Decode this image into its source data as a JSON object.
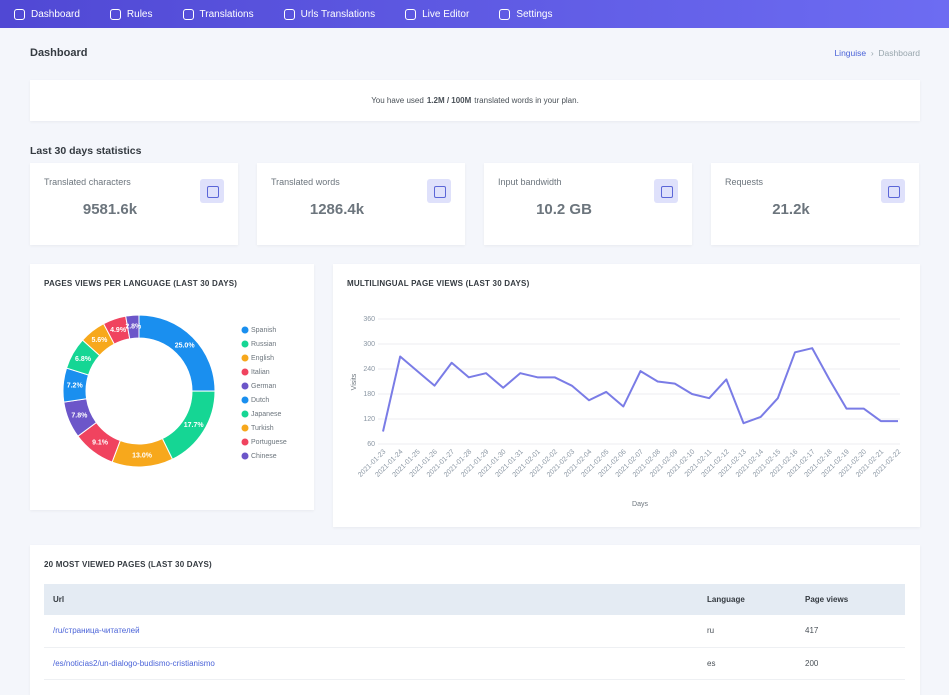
{
  "nav": [
    "Dashboard",
    "Rules",
    "Translations",
    "Urls Translations",
    "Live Editor",
    "Settings"
  ],
  "header": {
    "title": "Dashboard",
    "breadcrumb": [
      "Linguise",
      "Dashboard"
    ]
  },
  "usage": {
    "before": "You have used",
    "amount": "1.2M / 100M",
    "after": "translated words in your plan."
  },
  "stats": {
    "title": "Last 30 days statistics",
    "cards": [
      {
        "label": "Translated characters",
        "value": "9581.6k"
      },
      {
        "label": "Translated words",
        "value": "1286.4k"
      },
      {
        "label": "Input bandwidth",
        "value": "10.2 GB"
      },
      {
        "label": "Requests",
        "value": "21.2k"
      }
    ]
  },
  "chart_data": [
    {
      "type": "pie",
      "title": "PAGES VIEWS PER LANGUAGE (LAST 30 DAYS)",
      "donut": true,
      "categories": [
        "Spanish",
        "Russian",
        "English",
        "Italian",
        "German",
        "Dutch",
        "Japanese",
        "Turkish",
        "Portuguese",
        "Chinese"
      ],
      "values": [
        25.0,
        17.7,
        13.0,
        9.1,
        7.8,
        7.2,
        6.8,
        5.6,
        4.9,
        2.8
      ],
      "value_labels": [
        "25.0%",
        "17.7%",
        "13.0%",
        "9.1%",
        "7.8%",
        "7.2%",
        "6.8%",
        "5.6%",
        "4.9%",
        "2.8%"
      ],
      "colors": [
        "#1a8fef",
        "#15d694",
        "#f7a81c",
        "#f0435f",
        "#6c56c9",
        "#1a8fef",
        "#15d694",
        "#f7a81c",
        "#f0435f",
        "#6c56c9"
      ]
    },
    {
      "type": "line",
      "title": "MULTILINGUAL PAGE VIEWS (LAST 30 DAYS)",
      "xlabel": "Days",
      "ylabel": "Visits",
      "x": [
        "2021-01-23",
        "2021-01-24",
        "2021-01-25",
        "2021-01-26",
        "2021-01-27",
        "2021-01-28",
        "2021-01-29",
        "2021-01-30",
        "2021-01-31",
        "2021-02-01",
        "2021-02-02",
        "2021-02-03",
        "2021-02-04",
        "2021-02-05",
        "2021-02-06",
        "2021-02-07",
        "2021-02-08",
        "2021-02-09",
        "2021-02-10",
        "2021-02-11",
        "2021-02-12",
        "2021-02-13",
        "2021-02-14",
        "2021-02-15",
        "2021-02-16",
        "2021-02-17",
        "2021-02-18",
        "2021-02-19",
        "2021-02-20",
        "2021-02-21",
        "2021-02-22"
      ],
      "values": [
        90,
        270,
        235,
        200,
        255,
        220,
        230,
        195,
        230,
        220,
        220,
        200,
        165,
        185,
        150,
        235,
        210,
        205,
        180,
        170,
        215,
        110,
        125,
        170,
        280,
        290,
        215,
        145,
        145,
        115,
        115
      ],
      "color": "#7a7ce6",
      "ylim": [
        60,
        360
      ],
      "yticks": [
        60,
        120,
        180,
        240,
        300,
        360
      ],
      "grid": true
    }
  ],
  "table": {
    "title": "20 MOST VIEWED PAGES (LAST 30 DAYS)",
    "columns": [
      "Url",
      "Language",
      "Page views"
    ],
    "rows": [
      [
        "/ru/страница-читателей",
        "ru",
        417
      ],
      [
        "/es/noticias2/un-dialogo-budismo-cristianismo",
        "es",
        200
      ]
    ]
  }
}
